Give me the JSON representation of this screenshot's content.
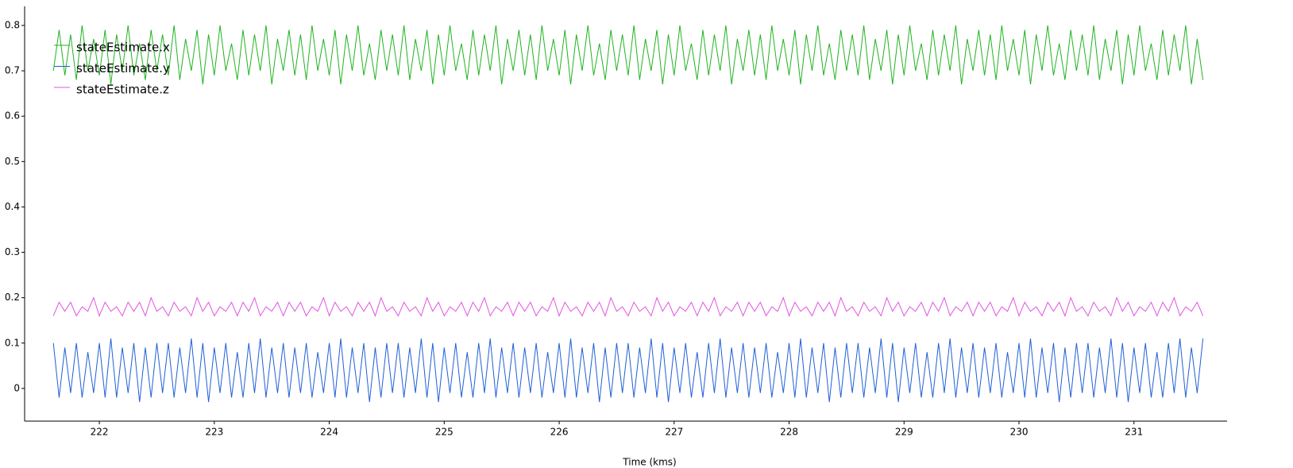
{
  "chart_data": {
    "type": "line",
    "x_label": "Time (kms)",
    "x": [
      221.6,
      221.65,
      221.7,
      221.75,
      221.8,
      221.85,
      221.9,
      221.95,
      222,
      222.05,
      222.1,
      222.15,
      222.2,
      222.25,
      222.3,
      222.35,
      222.4,
      222.45,
      222.5,
      222.55,
      222.6,
      222.65,
      222.7,
      222.75,
      222.8,
      222.85,
      222.9,
      222.95,
      223,
      223.05,
      223.1,
      223.15,
      223.2,
      223.25,
      223.3,
      223.35,
      223.4,
      223.45,
      223.5,
      223.55,
      223.6,
      223.65,
      223.7,
      223.75,
      223.8,
      223.85,
      223.9,
      223.95,
      224,
      224.05,
      224.1,
      224.15,
      224.2,
      224.25,
      224.3,
      224.35,
      224.4,
      224.45,
      224.5,
      224.55,
      224.6,
      224.65,
      224.7,
      224.75,
      224.8,
      224.85,
      224.9,
      224.95,
      225,
      225.05,
      225.1,
      225.15,
      225.2,
      225.25,
      225.3,
      225.35,
      225.4,
      225.45,
      225.5,
      225.55,
      225.6,
      225.65,
      225.7,
      225.75,
      225.8,
      225.85,
      225.9,
      225.95,
      226,
      226.05,
      226.1,
      226.15,
      226.2,
      226.25,
      226.3,
      226.35,
      226.4,
      226.45,
      226.5,
      226.55,
      226.6,
      226.65,
      226.7,
      226.75,
      226.8,
      226.85,
      226.9,
      226.95,
      227,
      227.05,
      227.1,
      227.15,
      227.2,
      227.25,
      227.3,
      227.35,
      227.4,
      227.45,
      227.5,
      227.55,
      227.6,
      227.65,
      227.7,
      227.75,
      227.8,
      227.85,
      227.9,
      227.95,
      228,
      228.05,
      228.1,
      228.15,
      228.2,
      228.25,
      228.3,
      228.35,
      228.4,
      228.45,
      228.5,
      228.55,
      228.6,
      228.65,
      228.7,
      228.75,
      228.8,
      228.85,
      228.9,
      228.95,
      229,
      229.05,
      229.1,
      229.15,
      229.2,
      229.25,
      229.3,
      229.35,
      229.4,
      229.45,
      229.5,
      229.55,
      229.6,
      229.65,
      229.7,
      229.75,
      229.8,
      229.85,
      229.9,
      229.95,
      230,
      230.05,
      230.1,
      230.15,
      230.2,
      230.25,
      230.3,
      230.35,
      230.4,
      230.45,
      230.5,
      230.55,
      230.6,
      230.65,
      230.7,
      230.75,
      230.8,
      230.85,
      230.9,
      230.95,
      231,
      231.05,
      231.1,
      231.15,
      231.2,
      231.25,
      231.3,
      231.35,
      231.4,
      231.45,
      231.5,
      231.55,
      231.6
    ],
    "series": [
      {
        "name": "stateEstimate.x",
        "color": "#1fb31f",
        "values": [
          0.7,
          0.79,
          0.69,
          0.78,
          0.68,
          0.8,
          0.7,
          0.77,
          0.69,
          0.79,
          0.67,
          0.78,
          0.7,
          0.8,
          0.69,
          0.76,
          0.68,
          0.79,
          0.7,
          0.78,
          0.69,
          0.8,
          0.68,
          0.77,
          0.7,
          0.79,
          0.67,
          0.78,
          0.69,
          0.8,
          0.7,
          0.76,
          0.68,
          0.79,
          0.69,
          0.78,
          0.7,
          0.8,
          0.67,
          0.77,
          0.7,
          0.79,
          0.69,
          0.78,
          0.68,
          0.8,
          0.7,
          0.77,
          0.69,
          0.79,
          0.67,
          0.78,
          0.7,
          0.8,
          0.69,
          0.76,
          0.68,
          0.79,
          0.7,
          0.78,
          0.69,
          0.8,
          0.68,
          0.77,
          0.7,
          0.79,
          0.67,
          0.78,
          0.69,
          0.8,
          0.7,
          0.76,
          0.68,
          0.79,
          0.69,
          0.78,
          0.7,
          0.8,
          0.67,
          0.77,
          0.7,
          0.79,
          0.69,
          0.78,
          0.68,
          0.8,
          0.7,
          0.77,
          0.69,
          0.79,
          0.67,
          0.78,
          0.7,
          0.8,
          0.69,
          0.76,
          0.68,
          0.79,
          0.7,
          0.78,
          0.69,
          0.8,
          0.68,
          0.77,
          0.7,
          0.79,
          0.67,
          0.78,
          0.69,
          0.8,
          0.7,
          0.76,
          0.68,
          0.79,
          0.69,
          0.78,
          0.7,
          0.8,
          0.67,
          0.77,
          0.7,
          0.79,
          0.69,
          0.78,
          0.68,
          0.8,
          0.7,
          0.77,
          0.69,
          0.79,
          0.67,
          0.78,
          0.7,
          0.8,
          0.69,
          0.76,
          0.68,
          0.79,
          0.7,
          0.78,
          0.69,
          0.8,
          0.68,
          0.77,
          0.7,
          0.79,
          0.67,
          0.78,
          0.69,
          0.8,
          0.7,
          0.76,
          0.68,
          0.79,
          0.69,
          0.78,
          0.7,
          0.8,
          0.67,
          0.77,
          0.7,
          0.79,
          0.69,
          0.78,
          0.68,
          0.8,
          0.7,
          0.77,
          0.69,
          0.79,
          0.67,
          0.78,
          0.7,
          0.8,
          0.69,
          0.76,
          0.68,
          0.79,
          0.7,
          0.78,
          0.69,
          0.8,
          0.68,
          0.77,
          0.7,
          0.79,
          0.67,
          0.78,
          0.69,
          0.8,
          0.7,
          0.76,
          0.68,
          0.79,
          0.69,
          0.78,
          0.7,
          0.8,
          0.67,
          0.77,
          0.68
        ]
      },
      {
        "name": "stateEstimate.y",
        "color": "#1f5fd6",
        "values": [
          0.1,
          -0.02,
          0.09,
          -0.01,
          0.1,
          -0.02,
          0.08,
          -0.01,
          0.1,
          -0.02,
          0.11,
          -0.02,
          0.09,
          -0.01,
          0.1,
          -0.03,
          0.09,
          -0.02,
          0.1,
          -0.01,
          0.1,
          -0.02,
          0.09,
          -0.01,
          0.11,
          -0.02,
          0.1,
          -0.03,
          0.09,
          -0.01,
          0.1,
          -0.02,
          0.08,
          -0.02,
          0.1,
          -0.01,
          0.11,
          -0.02,
          0.09,
          -0.01,
          0.1,
          -0.02,
          0.09,
          -0.01,
          0.1,
          -0.02,
          0.08,
          -0.01,
          0.1,
          -0.02,
          0.11,
          -0.02,
          0.09,
          -0.01,
          0.1,
          -0.03,
          0.09,
          -0.02,
          0.1,
          -0.01,
          0.1,
          -0.02,
          0.09,
          -0.01,
          0.11,
          -0.02,
          0.1,
          -0.03,
          0.09,
          -0.01,
          0.1,
          -0.02,
          0.08,
          -0.02,
          0.1,
          -0.01,
          0.11,
          -0.02,
          0.09,
          -0.01,
          0.1,
          -0.02,
          0.09,
          -0.01,
          0.1,
          -0.02,
          0.08,
          -0.01,
          0.1,
          -0.02,
          0.11,
          -0.02,
          0.09,
          -0.01,
          0.1,
          -0.03,
          0.09,
          -0.02,
          0.1,
          -0.01,
          0.1,
          -0.02,
          0.09,
          -0.01,
          0.11,
          -0.02,
          0.1,
          -0.03,
          0.09,
          -0.01,
          0.1,
          -0.02,
          0.08,
          -0.02,
          0.1,
          -0.01,
          0.11,
          -0.02,
          0.09,
          -0.01,
          0.1,
          -0.02,
          0.09,
          -0.01,
          0.1,
          -0.02,
          0.08,
          -0.01,
          0.1,
          -0.02,
          0.11,
          -0.02,
          0.09,
          -0.01,
          0.1,
          -0.03,
          0.09,
          -0.02,
          0.1,
          -0.01,
          0.1,
          -0.02,
          0.09,
          -0.01,
          0.11,
          -0.02,
          0.1,
          -0.03,
          0.09,
          -0.01,
          0.1,
          -0.02,
          0.08,
          -0.02,
          0.1,
          -0.01,
          0.11,
          -0.02,
          0.09,
          -0.01,
          0.1,
          -0.02,
          0.09,
          -0.01,
          0.1,
          -0.02,
          0.08,
          -0.01,
          0.1,
          -0.02,
          0.11,
          -0.02,
          0.09,
          -0.01,
          0.1,
          -0.03,
          0.09,
          -0.02,
          0.1,
          -0.01,
          0.1,
          -0.02,
          0.09,
          -0.01,
          0.11,
          -0.02,
          0.1,
          -0.03,
          0.09,
          -0.01,
          0.1,
          -0.02,
          0.08,
          -0.02,
          0.1,
          -0.01,
          0.11,
          -0.02,
          0.09,
          -0.01,
          0.11
        ]
      },
      {
        "name": "stateEstimate.z",
        "color": "#e055e0",
        "values": [
          0.16,
          0.19,
          0.17,
          0.19,
          0.16,
          0.18,
          0.17,
          0.2,
          0.16,
          0.19,
          0.17,
          0.18,
          0.16,
          0.19,
          0.17,
          0.19,
          0.16,
          0.2,
          0.17,
          0.18,
          0.16,
          0.19,
          0.17,
          0.18,
          0.16,
          0.2,
          0.17,
          0.19,
          0.16,
          0.18,
          0.17,
          0.19,
          0.16,
          0.19,
          0.17,
          0.2,
          0.16,
          0.18,
          0.17,
          0.19,
          0.16,
          0.19,
          0.17,
          0.19,
          0.16,
          0.18,
          0.17,
          0.2,
          0.16,
          0.19,
          0.17,
          0.18,
          0.16,
          0.19,
          0.17,
          0.19,
          0.16,
          0.2,
          0.17,
          0.18,
          0.16,
          0.19,
          0.17,
          0.18,
          0.16,
          0.2,
          0.17,
          0.19,
          0.16,
          0.18,
          0.17,
          0.19,
          0.16,
          0.19,
          0.17,
          0.2,
          0.16,
          0.18,
          0.17,
          0.19,
          0.16,
          0.19,
          0.17,
          0.19,
          0.16,
          0.18,
          0.17,
          0.2,
          0.16,
          0.19,
          0.17,
          0.18,
          0.16,
          0.19,
          0.17,
          0.19,
          0.16,
          0.2,
          0.17,
          0.18,
          0.16,
          0.19,
          0.17,
          0.18,
          0.16,
          0.2,
          0.17,
          0.19,
          0.16,
          0.18,
          0.17,
          0.19,
          0.16,
          0.19,
          0.17,
          0.2,
          0.16,
          0.18,
          0.17,
          0.19,
          0.16,
          0.19,
          0.17,
          0.19,
          0.16,
          0.18,
          0.17,
          0.2,
          0.16,
          0.19,
          0.17,
          0.18,
          0.16,
          0.19,
          0.17,
          0.19,
          0.16,
          0.2,
          0.17,
          0.18,
          0.16,
          0.19,
          0.17,
          0.18,
          0.16,
          0.2,
          0.17,
          0.19,
          0.16,
          0.18,
          0.17,
          0.19,
          0.16,
          0.19,
          0.17,
          0.2,
          0.16,
          0.18,
          0.17,
          0.19,
          0.16,
          0.19,
          0.17,
          0.19,
          0.16,
          0.18,
          0.17,
          0.2,
          0.16,
          0.19,
          0.17,
          0.18,
          0.16,
          0.19,
          0.17,
          0.19,
          0.16,
          0.2,
          0.17,
          0.18,
          0.16,
          0.19,
          0.17,
          0.18,
          0.16,
          0.2,
          0.17,
          0.19,
          0.16,
          0.18,
          0.17,
          0.19,
          0.16,
          0.19,
          0.17,
          0.2,
          0.16,
          0.18,
          0.17,
          0.19,
          0.16
        ]
      }
    ],
    "xlim": [
      221.35,
      231.81
    ],
    "ylim": [
      -0.072,
      0.842
    ],
    "xticks": [
      222,
      223,
      224,
      225,
      226,
      227,
      228,
      229,
      230,
      231
    ],
    "yticks": [
      0,
      0.1,
      0.2,
      0.3,
      0.4,
      0.5,
      0.6,
      0.7,
      0.8
    ],
    "legend": "upper left"
  }
}
